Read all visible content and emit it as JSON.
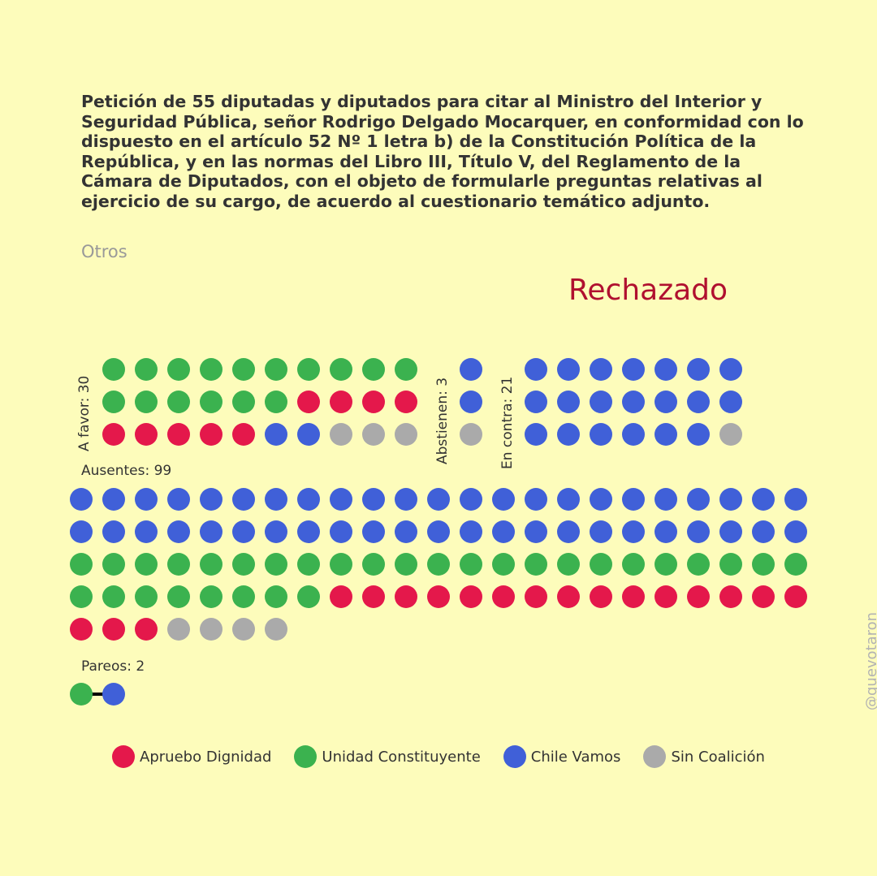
{
  "title": "Petición de 55 diputadas y diputados para citar al Ministro del Interior y Seguridad Pública, señor Rodrigo Delgado Mocarquer, en conformidad con lo dispuesto en el artículo 52 Nº 1 letra b) de la Constitución Política de la República, y en las normas del Libro III, Título V, del Reglamento de la Cámara de Diputados, con el objeto de formularle preguntas relativas al ejercicio de su cargo, de acuerdo al cuestionario temático adjunto.",
  "category": "Otros",
  "result": "Rechazado",
  "watermark": "@quevotaron",
  "colors": {
    "AD": "#e4184b",
    "UC": "#3bb24f",
    "CV": "#4060d8",
    "SC": "#aaaaaa",
    "background": "#fdfcbb",
    "result": "#b0102f"
  },
  "labels": {
    "favor": "A favor: 30",
    "abstienen": "Abstienen: 3",
    "contra": "En contra: 21",
    "ausentes": "Ausentes: 99",
    "pareos": "Pareos: 2"
  },
  "chart_data": {
    "type": "waffle",
    "groups": [
      {
        "name": "A favor",
        "total": 30,
        "counts": {
          "UC": 16,
          "AD": 9,
          "CV": 2,
          "SC": 3
        }
      },
      {
        "name": "Abstienen",
        "total": 3,
        "counts": {
          "CV": 2,
          "SC": 1
        }
      },
      {
        "name": "En contra",
        "total": 21,
        "counts": {
          "CV": 20,
          "SC": 1
        }
      },
      {
        "name": "Ausentes",
        "total": 99,
        "counts": {
          "CV": 46,
          "UC": 31,
          "AD": 18,
          "SC": 4
        }
      },
      {
        "name": "Pareos",
        "total": 2,
        "counts": {
          "UC": 1,
          "CV": 1
        }
      }
    ],
    "legend": [
      {
        "key": "AD",
        "label": "Apruebo Dignidad"
      },
      {
        "key": "UC",
        "label": "Unidad Constituyente"
      },
      {
        "key": "CV",
        "label": "Chile Vamos"
      },
      {
        "key": "SC",
        "label": "Sin Coalición"
      }
    ]
  }
}
